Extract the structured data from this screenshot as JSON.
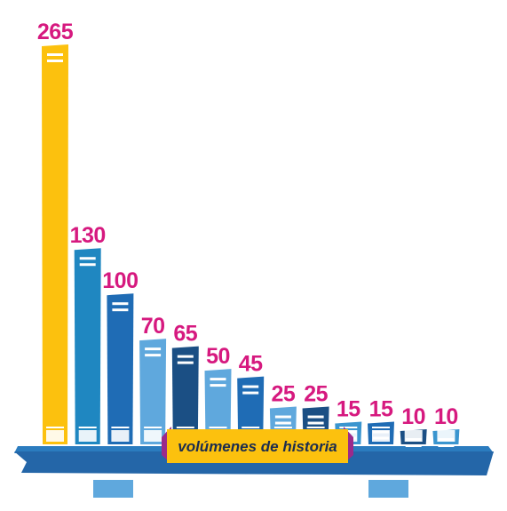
{
  "chart_data": {
    "type": "bar",
    "values": [
      265,
      130,
      100,
      70,
      65,
      50,
      45,
      25,
      25,
      15,
      15,
      10,
      10
    ],
    "caption": "volúmenes de historia",
    "ylim": [
      0,
      265
    ],
    "grid": false,
    "legend": "none"
  },
  "colors": {
    "bars": [
      "#fcc10e",
      "#1f87c1",
      "#1f6cb5",
      "#5fa8dd",
      "#1b4f84",
      "#5fa8dd",
      "#1f6cb5",
      "#5fa8dd",
      "#1b4f84",
      "#3a95cf",
      "#1f6cb5",
      "#1b4f84",
      "#3a95cf"
    ],
    "value_label": "#d6197f",
    "shelf_top": "#2b7cbf",
    "shelf_front": "#2466a8",
    "shelf_legs": "#5fa8dd",
    "caption_bg": "#fcc10e",
    "caption_ribbon": "#9b2a8b"
  }
}
